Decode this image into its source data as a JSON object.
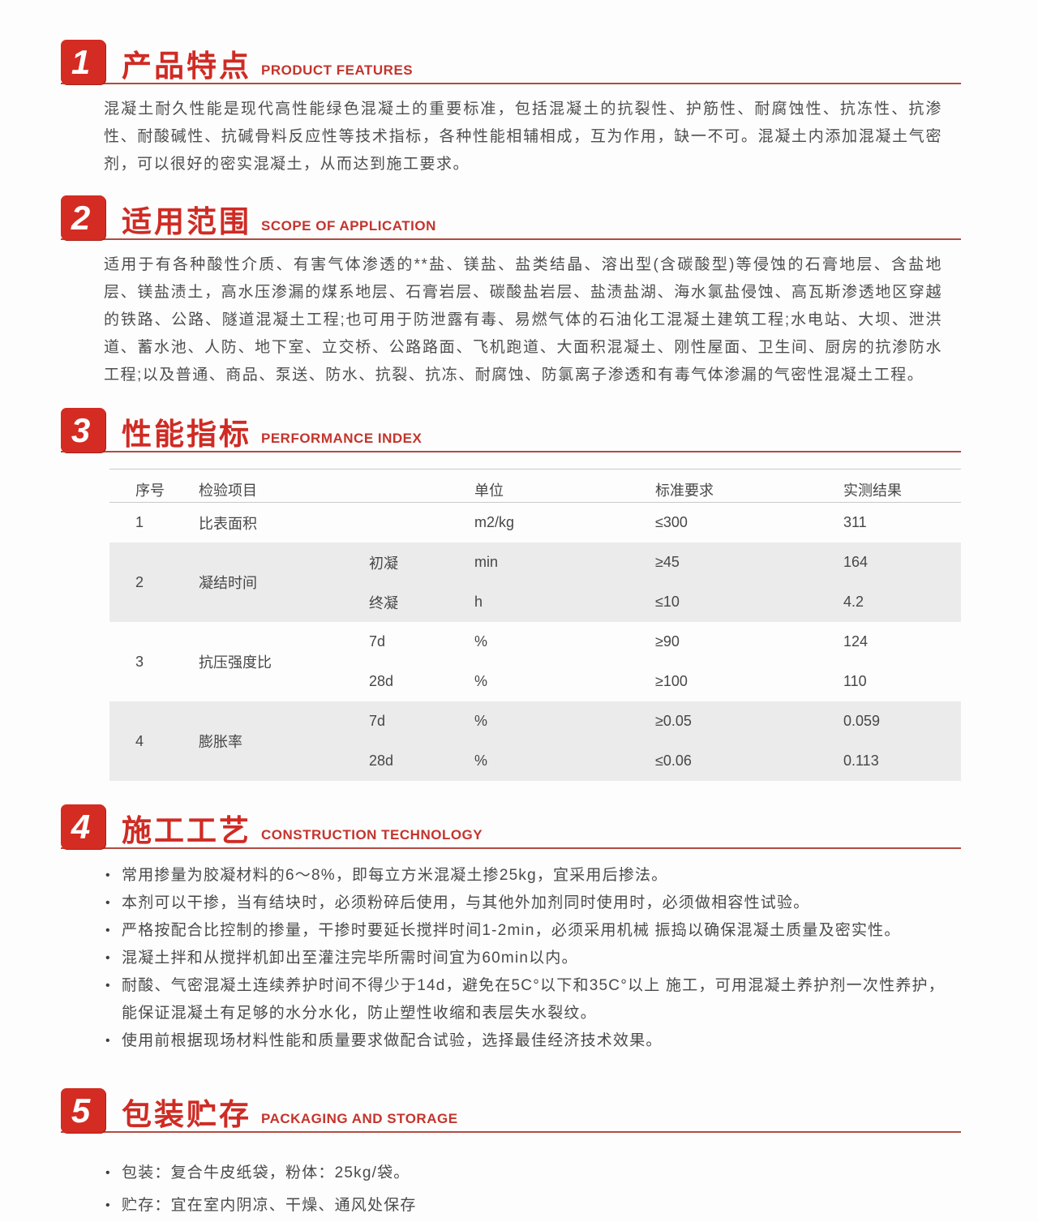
{
  "accent": {
    "red": "#d42c22",
    "underline": "#b24b40",
    "row_shade": "#ebebeb"
  },
  "sections": {
    "s1": {
      "num": "1",
      "title": "产品特点",
      "subtitle": "PRODUCT FEATURES",
      "paragraph": "混凝土耐久性能是现代高性能绿色混凝土的重要标准，包括混凝土的抗裂性、护筋性、耐腐蚀性、抗冻性、抗渗性、耐酸碱性、抗碱骨料反应性等技术指标，各种性能相辅相成，互为作用，缺一不可。混凝土内添加混凝土气密剂，可以很好的密实混凝土，从而达到施工要求。"
    },
    "s2": {
      "num": "2",
      "title": "适用范围",
      "subtitle": "SCOPE OF APPLICATION",
      "paragraph": "适用于有各种酸性介质、有害气体渗透的**盐、镁盐、盐类结晶、溶出型(含碳酸型)等侵蚀的石膏地层、含盐地层、镁盐渍土，高水压渗漏的煤系地层、石膏岩层、碳酸盐岩层、盐渍盐湖、海水氯盐侵蚀、高瓦斯渗透地区穿越的铁路、公路、隧道混凝土工程;也可用于防泄露有毒、易燃气体的石油化工混凝土建筑工程;水电站、大坝、泄洪道、蓄水池、人防、地下室、立交桥、公路路面、飞机跑道、大面积混凝土、刚性屋面、卫生间、厨房的抗渗防水工程;以及普通、商品、泵送、防水、抗裂、抗冻、耐腐蚀、防氯离子渗透和有毒气体渗漏的气密性混凝土工程。"
    },
    "s3": {
      "num": "3",
      "title": "性能指标",
      "subtitle": "PERFORMANCE INDEX"
    },
    "s4": {
      "num": "4",
      "title": "施工工艺",
      "subtitle": "CONSTRUCTION TECHNOLOGY",
      "bullets": [
        "常用掺量为胶凝材料的6～8%，即每立方米混凝土掺25kg，宜采用后掺法。",
        "本剂可以干掺，当有结块时，必须粉碎后使用，与其他外加剂同时使用时，必须做相容性试验。",
        "严格按配合比控制的掺量，干掺时要延长搅拌时间1-2min，必须采用机械 振捣以确保混凝土质量及密实性。",
        "混凝土拌和从搅拌机卸出至灌注完毕所需时间宜为60min以内。",
        "耐酸、气密混凝土连续养护时间不得少于14d，避免在5C°以下和35C°以上 施工，可用混凝土养护剂一次性养护，能保证混凝土有足够的水分水化，防止塑性收缩和表层失水裂纹。",
        "使用前根据现场材料性能和质量要求做配合试验，选择最佳经济技术效果。"
      ]
    },
    "s5": {
      "num": "5",
      "title": "包装贮存",
      "subtitle": "PACKAGING AND STORAGE",
      "bullets": [
        "包装：复合牛皮纸袋，粉体：25kg/袋。",
        "贮存：宜在室内阴凉、干燥、通风处保存"
      ]
    }
  },
  "table": {
    "headers": {
      "no": "序号",
      "item": "检验项目",
      "sub": "",
      "unit": "单位",
      "standard": "标准要求",
      "result": "实测结果"
    },
    "groups": [
      {
        "no": "1",
        "item": "比表面积",
        "rows": [
          {
            "sub": "",
            "unit": "m2/kg",
            "standard": "≤300",
            "result": "311"
          }
        ]
      },
      {
        "no": "2",
        "item": "凝结时间",
        "rows": [
          {
            "sub": "初凝",
            "unit": "min",
            "standard": "≥45",
            "result": "164"
          },
          {
            "sub": "终凝",
            "unit": "h",
            "standard": "≤10",
            "result": "4.2"
          }
        ]
      },
      {
        "no": "3",
        "item": "抗压强度比",
        "rows": [
          {
            "sub": "7d",
            "unit": "%",
            "standard": "≥90",
            "result": "124"
          },
          {
            "sub": "28d",
            "unit": "%",
            "standard": "≥100",
            "result": "110"
          }
        ]
      },
      {
        "no": "4",
        "item": "膨胀率",
        "rows": [
          {
            "sub": "7d",
            "unit": "%",
            "standard": "≥0.05",
            "result": "0.059"
          },
          {
            "sub": "28d",
            "unit": "%",
            "standard": "≤0.06",
            "result": "0.113"
          }
        ]
      }
    ]
  }
}
